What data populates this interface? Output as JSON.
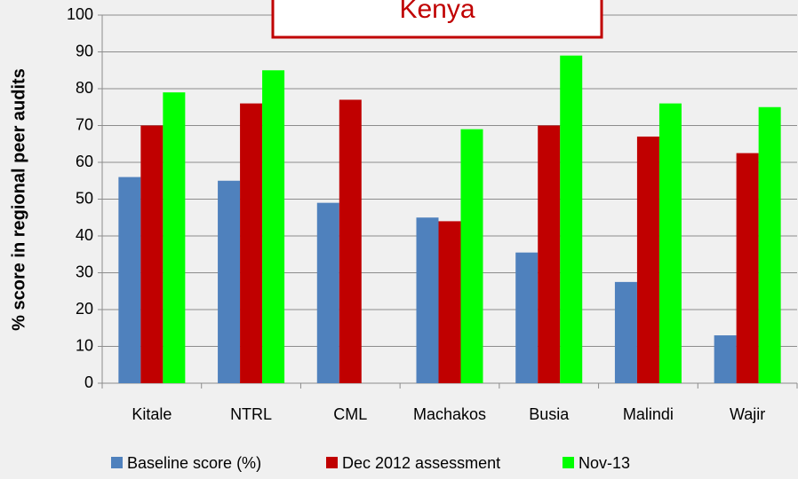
{
  "chart_data": {
    "type": "bar",
    "title": "Kenya",
    "y_label": "% score in regional peer audits",
    "categories": [
      "Kitale",
      "NTRL",
      "CML",
      "Machakos",
      "Busia",
      "Malindi",
      "Wajir"
    ],
    "series": [
      {
        "name": "Baseline score  (%)",
        "color": "#4f81bd",
        "values": [
          56,
          55,
          49,
          45,
          35.5,
          27.5,
          13
        ]
      },
      {
        "name": "Dec 2012 assessment",
        "color": "#c00000",
        "values": [
          70,
          76,
          77,
          44,
          70,
          67,
          62.5
        ]
      },
      {
        "name": "Nov-13",
        "color": "#00ff00",
        "values": [
          79,
          85,
          null,
          69,
          89,
          76,
          75
        ]
      }
    ],
    "ylim": [
      0,
      100
    ],
    "yticks": [
      0,
      10,
      20,
      30,
      40,
      50,
      60,
      70,
      80,
      90,
      100
    ],
    "grid": true,
    "legend": "bottom"
  }
}
